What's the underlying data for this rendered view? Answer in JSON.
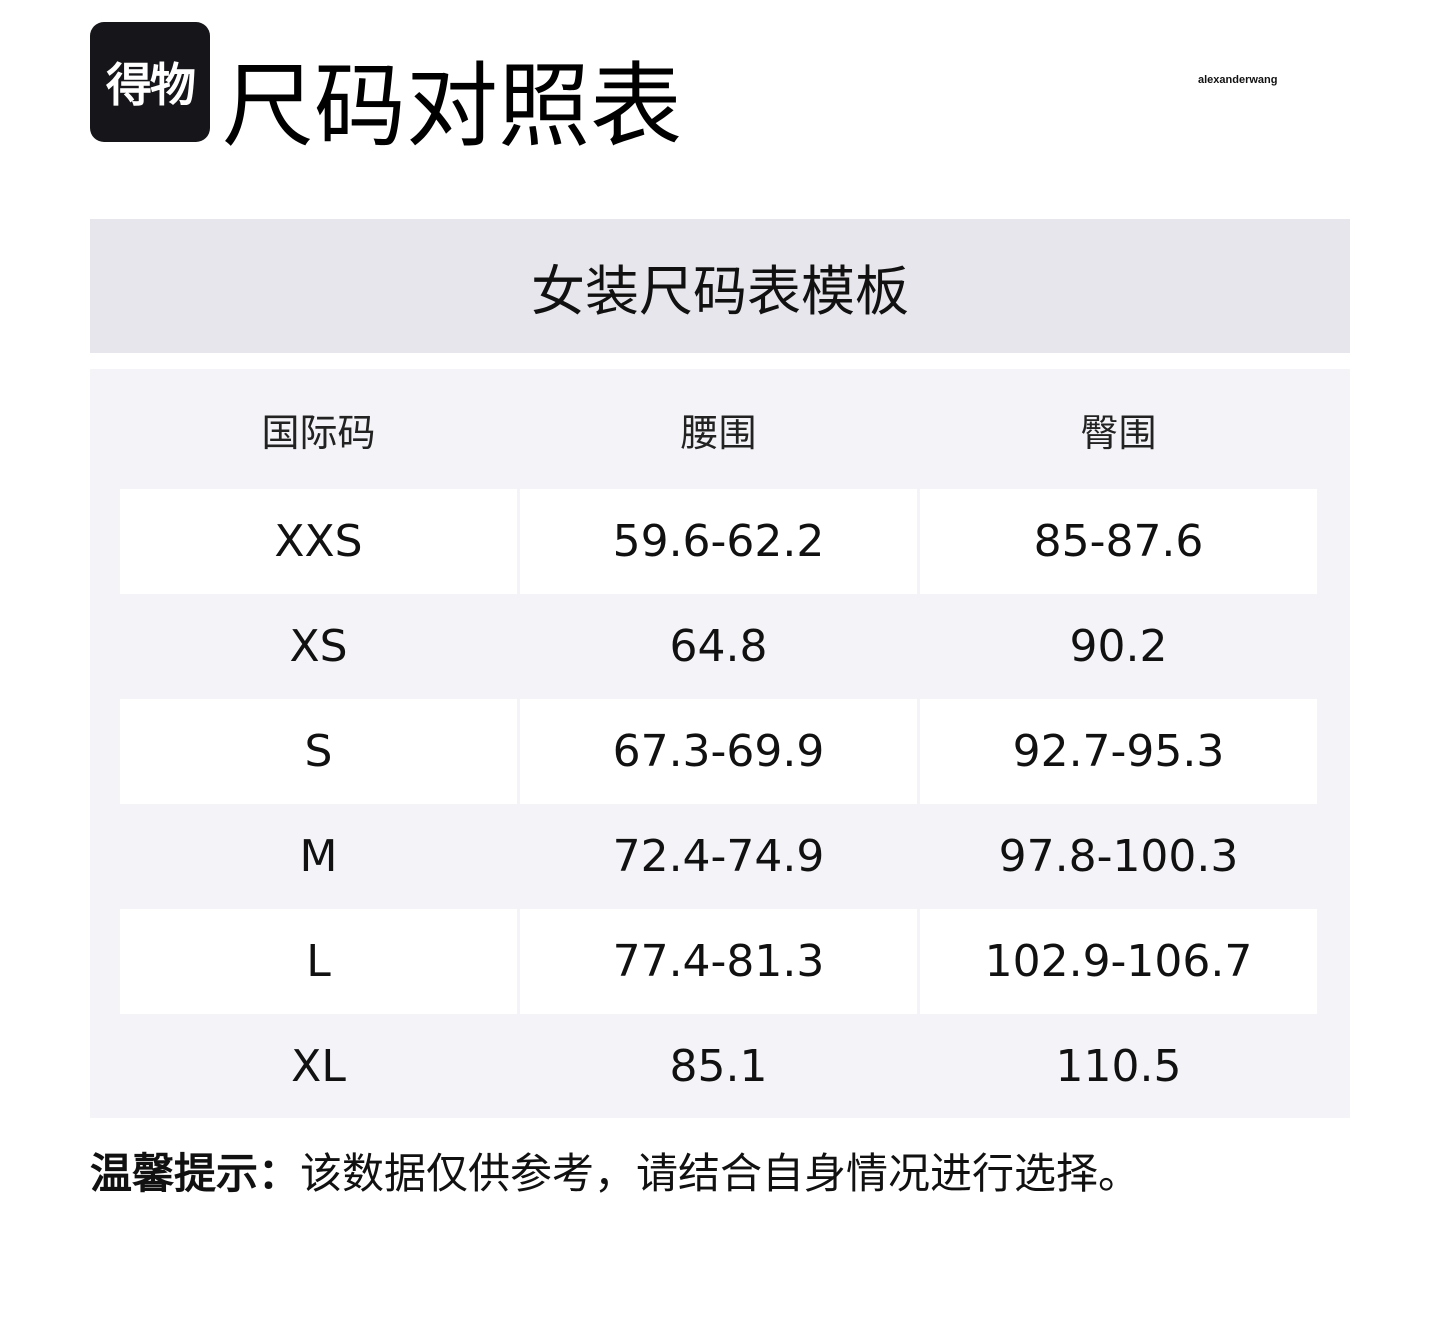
{
  "header": {
    "logo_text": "得物",
    "title": "尺码对照表",
    "brand": "alexanderwang"
  },
  "table": {
    "title": "女装尺码表模板",
    "columns": [
      "国际码",
      "腰围",
      "臀围"
    ],
    "rows": [
      [
        "XXS",
        "59.6-62.2",
        "85-87.6"
      ],
      [
        "XS",
        "64.8",
        "90.2"
      ],
      [
        "S",
        "67.3-69.9",
        "92.7-95.3"
      ],
      [
        "M",
        "72.4-74.9",
        "97.8-100.3"
      ],
      [
        "L",
        "77.4-81.3",
        "102.9-106.7"
      ],
      [
        "XL",
        "85.1",
        "110.5"
      ]
    ]
  },
  "footer": {
    "tip_label": "温馨提示：",
    "tip_text": "该数据仅供参考，请结合自身情况进行选择。"
  }
}
